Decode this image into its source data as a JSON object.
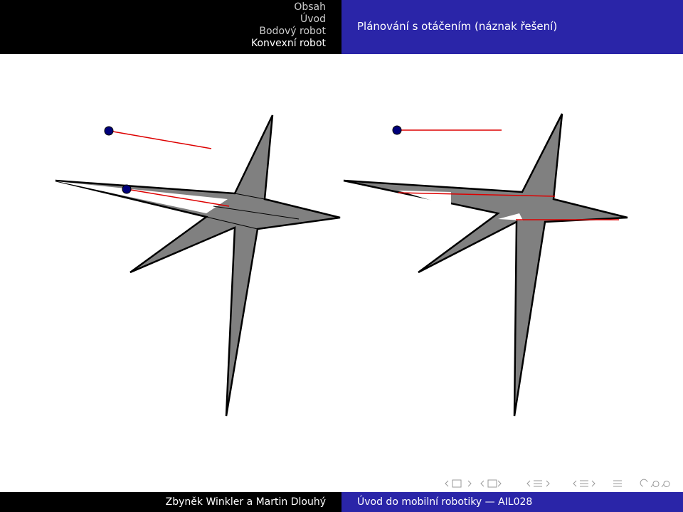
{
  "header": {
    "sections": [
      "Obsah",
      "Úvod",
      "Bodový robot",
      "Konvexní robot"
    ],
    "frame_title": "Plánování s otáčením (náznak řešení)"
  },
  "footer": {
    "authors": "Zbyněk Winkler a Martin Dlouhý",
    "title": "Úvod do mobilní robotiky — AIL028"
  }
}
